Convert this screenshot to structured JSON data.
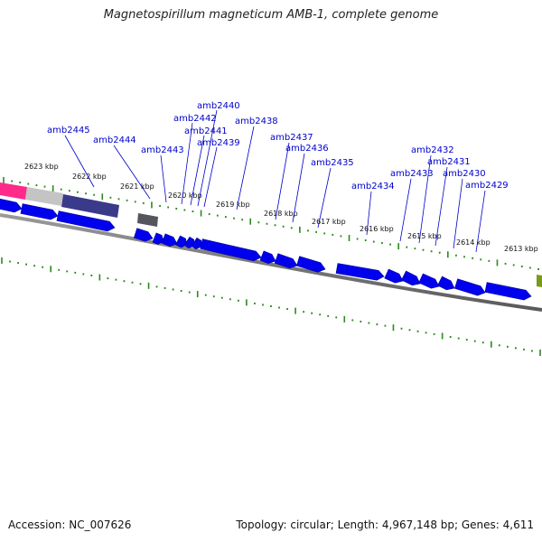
{
  "title": "Magnetospirillum magneticum AMB-1, complete genome",
  "footer": {
    "accession": "Accession: NC_007626",
    "summary": "Topology: circular; Length: 4,967,148 bp; Genes: 4,611"
  },
  "colors": {
    "gene": "#0000ee",
    "gene_edge": "#000099",
    "tick": "#2a8a1a",
    "backbone": "#808080",
    "label": "#0000cc",
    "pink": "#ff2a8a",
    "grey_block": "#bdbdbd",
    "slate_block": "#3a3a8a",
    "dark_block": "#555560",
    "olive_block": "#7a9a1a"
  },
  "kbp_labels": [
    "2623 kbp",
    "2622 kbp",
    "2621 kbp",
    "2620 kbp",
    "2619 kbp",
    "2618 kbp",
    "2617 kbp",
    "2616 kbp",
    "2615 kbp",
    "2614 kbp",
    "2613 kbp"
  ],
  "gene_labels": [
    "amb2445",
    "amb2444",
    "amb2443",
    "amb2442",
    "amb2440",
    "amb2441",
    "amb2439",
    "amb2438",
    "amb2437",
    "amb2436",
    "amb2435",
    "amb2434",
    "amb2433",
    "amb2432",
    "amb2431",
    "amb2430",
    "amb2429"
  ]
}
